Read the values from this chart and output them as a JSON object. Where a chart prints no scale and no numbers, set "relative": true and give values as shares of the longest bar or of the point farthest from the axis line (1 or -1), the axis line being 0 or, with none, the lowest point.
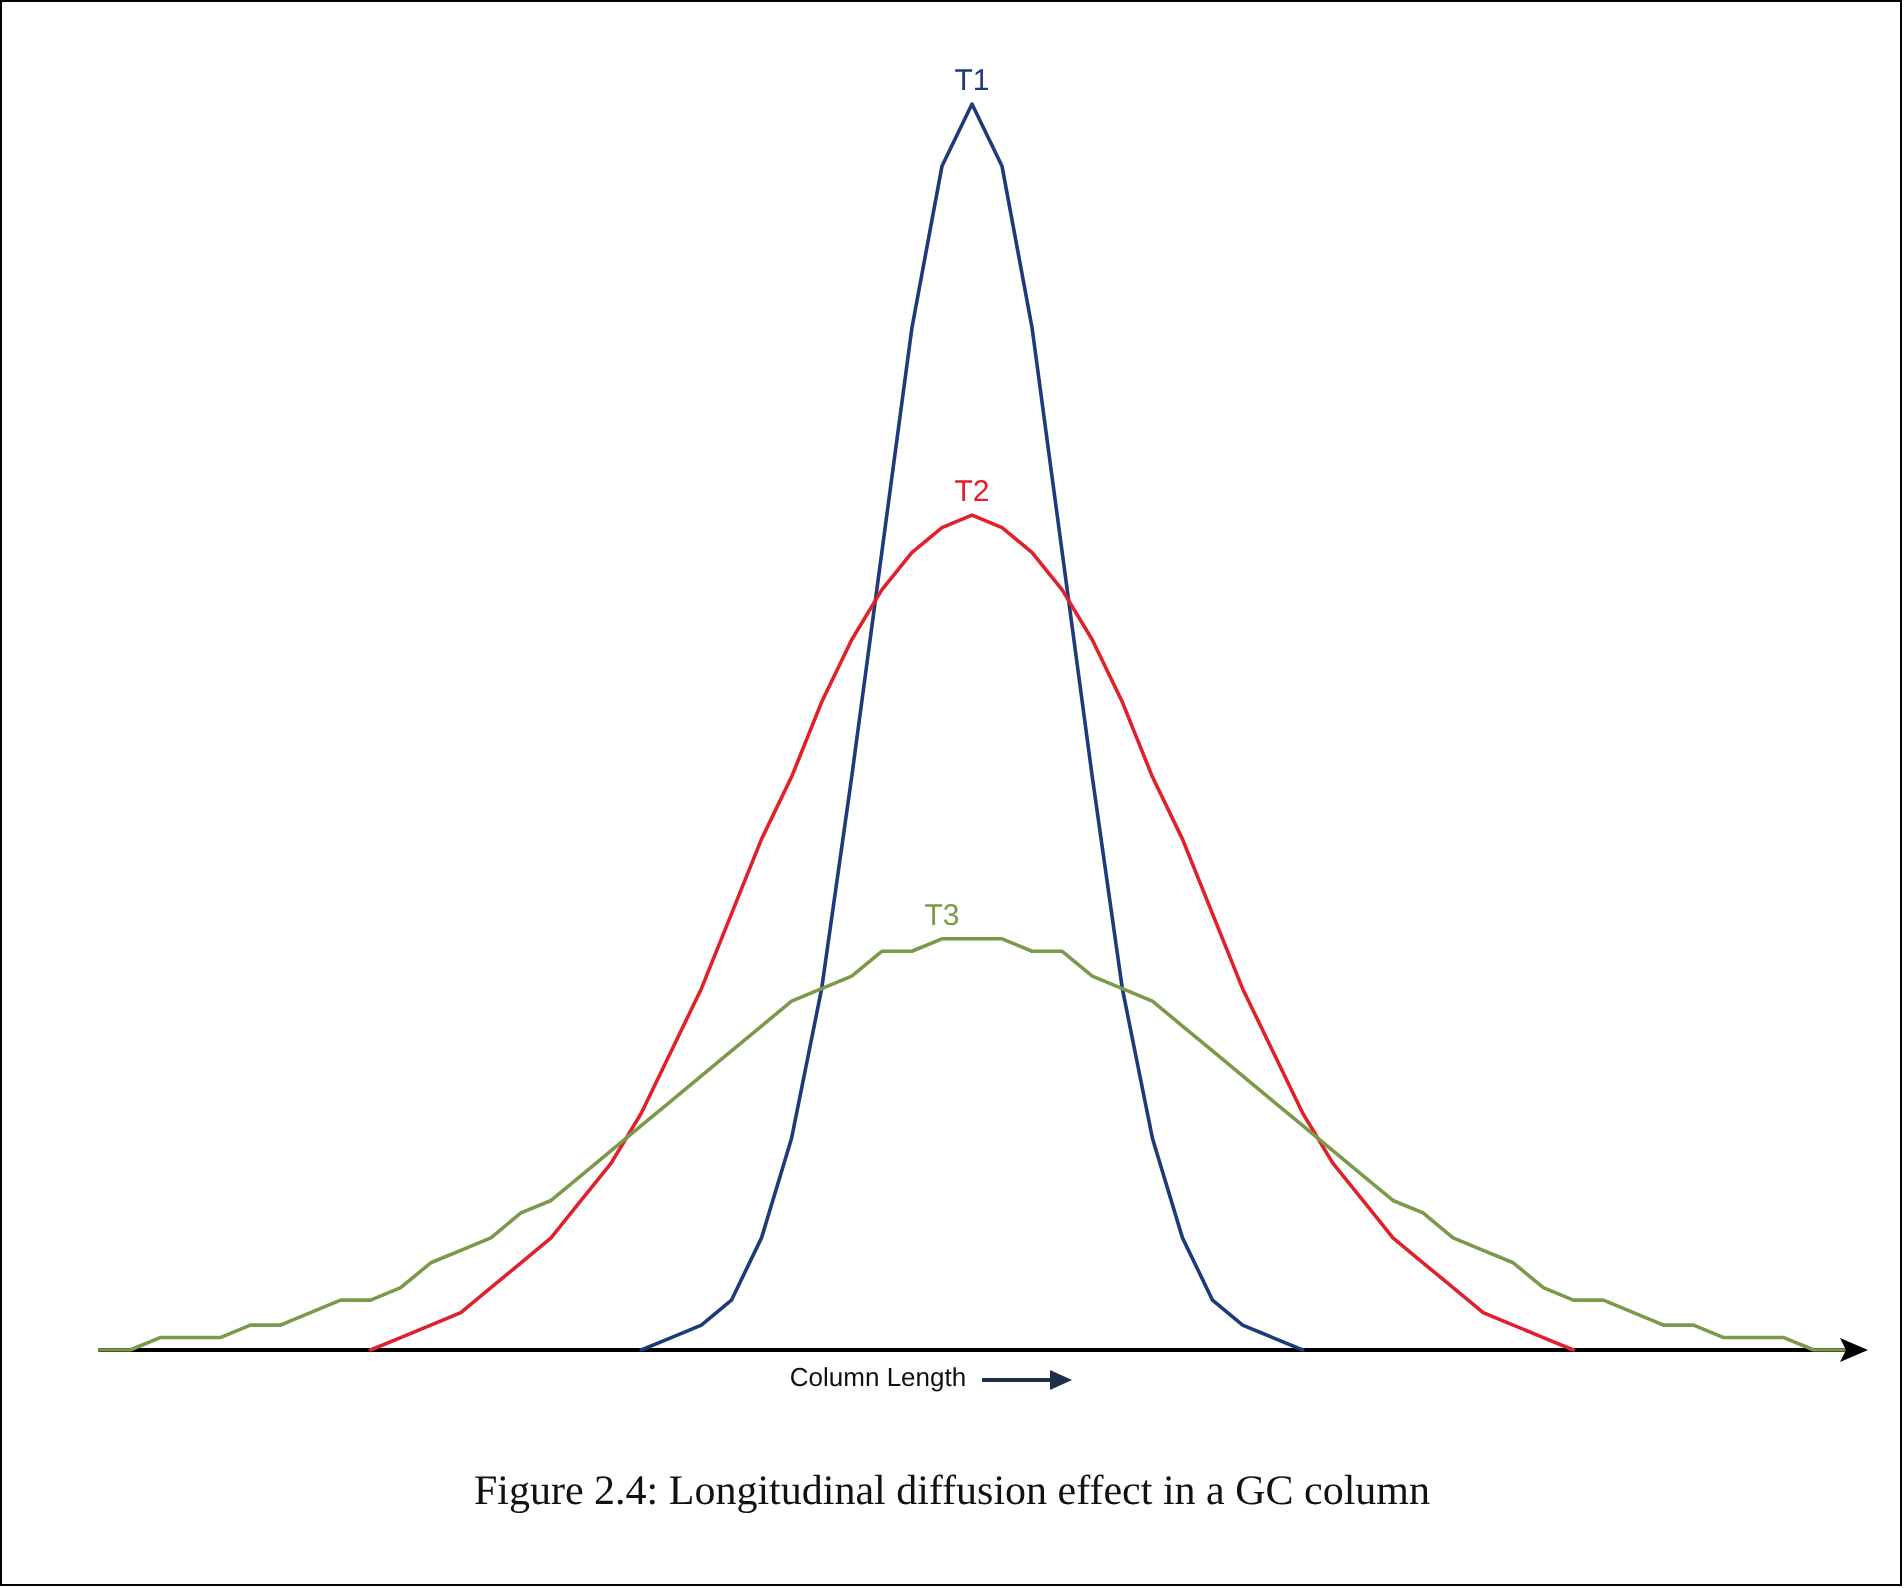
{
  "chart_data": {
    "type": "line",
    "relative": true,
    "xlabel": "Column Length",
    "annotations": [
      "Figure 2.4: Longitudinal diffusion effect in a GC column"
    ],
    "categories": [
      null,
      null,
      null,
      null,
      null,
      null,
      null,
      null,
      null,
      null,
      null,
      null,
      null,
      null,
      null,
      null,
      null,
      null,
      null,
      null,
      null,
      null,
      null,
      null,
      null,
      null,
      null,
      null,
      null,
      null,
      null,
      null,
      null,
      null,
      null,
      null,
      null,
      null,
      null,
      null,
      null,
      null,
      null,
      null,
      null,
      null,
      null,
      null,
      null,
      null,
      null,
      null,
      null,
      null,
      null,
      null,
      null,
      null,
      null
    ],
    "series": [
      {
        "name": "T1",
        "color": "#1f3a7a",
        "values": [
          null,
          null,
          null,
          null,
          null,
          null,
          null,
          null,
          null,
          null,
          null,
          null,
          null,
          null,
          null,
          null,
          null,
          null,
          0,
          0.01,
          0.02,
          0.04,
          0.09,
          0.17,
          0.29,
          0.46,
          0.64,
          0.82,
          0.95,
          1,
          0.95,
          0.82,
          0.64,
          0.46,
          0.29,
          0.17,
          0.09,
          0.04,
          0.02,
          0.01,
          0,
          null,
          null,
          null,
          null,
          null,
          null,
          null,
          null,
          null,
          null,
          null,
          null,
          null,
          null,
          null,
          null,
          null,
          null
        ]
      },
      {
        "name": "T2",
        "color": "#e0202a",
        "values": [
          null,
          null,
          null,
          null,
          null,
          null,
          null,
          null,
          null,
          0,
          0.01,
          0.02,
          0.03,
          0.05,
          0.07,
          0.09,
          0.12,
          0.15,
          0.19,
          0.24,
          0.29,
          0.35,
          0.41,
          0.46,
          0.52,
          0.57,
          0.61,
          0.64,
          0.66,
          0.67,
          0.66,
          0.64,
          0.61,
          0.57,
          0.52,
          0.46,
          0.41,
          0.35,
          0.29,
          0.24,
          0.19,
          0.15,
          0.12,
          0.09,
          0.07,
          0.05,
          0.03,
          0.02,
          0.01,
          0,
          null,
          null,
          null,
          null,
          null,
          null,
          null,
          null,
          null
        ]
      },
      {
        "name": "T3",
        "color": "#7a9a4a",
        "values": [
          0,
          0,
          0.01,
          0.01,
          0.01,
          0.02,
          0.02,
          0.03,
          0.04,
          0.04,
          0.05,
          0.07,
          0.08,
          0.09,
          0.11,
          0.12,
          0.14,
          0.16,
          0.18,
          0.2,
          0.22,
          0.24,
          0.26,
          0.28,
          0.29,
          0.3,
          0.32,
          0.32,
          0.33,
          0.33,
          0.33,
          0.32,
          0.32,
          0.3,
          0.29,
          0.28,
          0.26,
          0.24,
          0.22,
          0.2,
          0.18,
          0.16,
          0.14,
          0.12,
          0.11,
          0.09,
          0.08,
          0.07,
          0.05,
          0.04,
          0.04,
          0.03,
          0.02,
          0.02,
          0.01,
          0.01,
          0.01,
          0,
          0
        ]
      }
    ],
    "grid": false,
    "legend": false,
    "marker": "none",
    "line_style": "solid"
  }
}
